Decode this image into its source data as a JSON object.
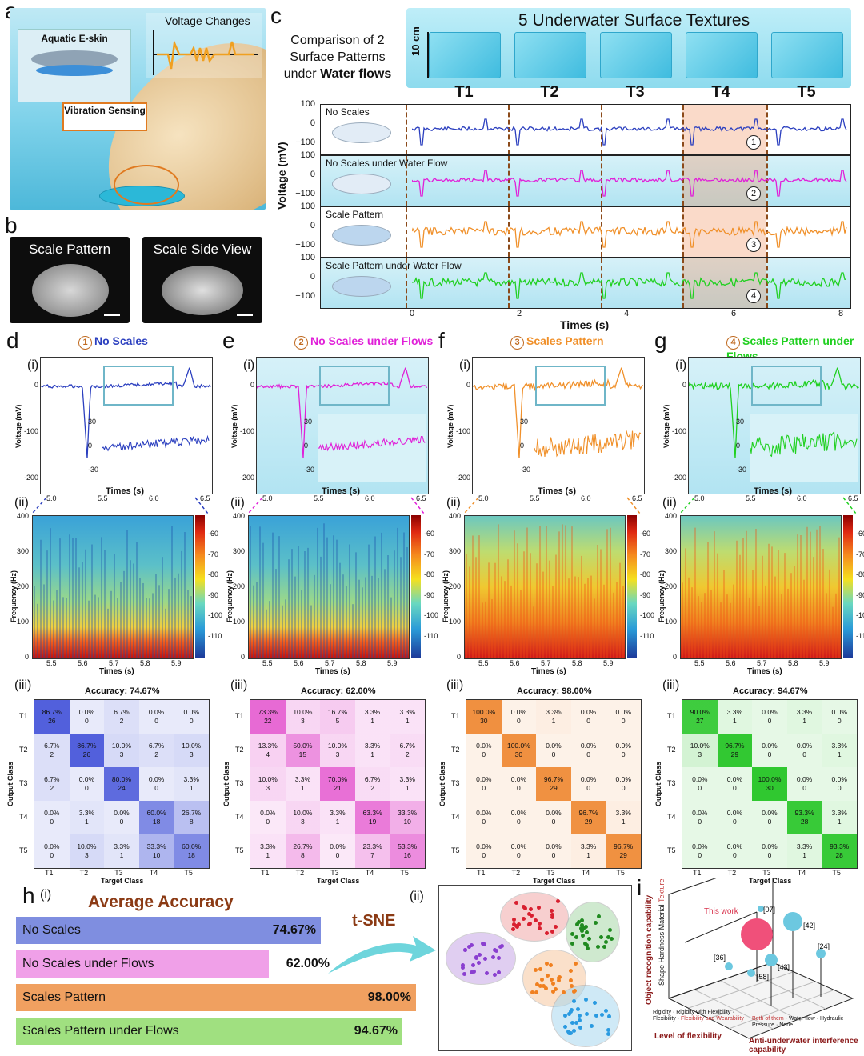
{
  "panel_letters": {
    "a": "a",
    "b": "b",
    "c": "c",
    "d": "d",
    "e": "e",
    "f": "f",
    "g": "g",
    "h": "h",
    "i": "i"
  },
  "panel_a": {
    "skin_label": "Aquatic E-skin",
    "voltage_label": "Voltage Changes",
    "sensing_label": "Vibration Sensing"
  },
  "panel_b": {
    "left_title": "Scale Pattern",
    "right_title": "Scale Side View"
  },
  "panel_c": {
    "comparison_text": "Comparison of 2 Surface Patterns under",
    "comparison_bold": "Water flows",
    "textures_title": "5  Underwater Surface Textures",
    "scale_bar": "10 cm",
    "textures": [
      "T1",
      "T2",
      "T3",
      "T4",
      "T5"
    ],
    "ylabel": "Voltage (mV)",
    "xlabel": "Times (s)",
    "xticks": [
      "0",
      "2",
      "4",
      "6",
      "8"
    ],
    "yticks": [
      "100",
      "0",
      "−100"
    ],
    "strips": [
      {
        "name": "No Scales",
        "num": "1",
        "color": "#2b3fbf"
      },
      {
        "name": "No Scales under Water Flow",
        "num": "2",
        "color": "#e020d8"
      },
      {
        "name": "Scale Pattern",
        "num": "3",
        "color": "#f0902a"
      },
      {
        "name": "Scale Pattern under Water Flow",
        "num": "4",
        "color": "#20d020"
      }
    ]
  },
  "subpanels": [
    {
      "num": "1",
      "title": "No Scales",
      "color": "#2b3fbf",
      "accuracy": "Accuracy: 74.67%",
      "matrix": [
        [
          "86.7%",
          "26"
        ],
        [
          "0.0%",
          "0"
        ],
        [
          "6.7%",
          "2"
        ],
        [
          "0.0%",
          "0"
        ],
        [
          "0.0%",
          "0"
        ],
        [
          "6.7%",
          "2"
        ],
        [
          "86.7%",
          "26"
        ],
        [
          "10.0%",
          "3"
        ],
        [
          "6.7%",
          "2"
        ],
        [
          "10.0%",
          "3"
        ],
        [
          "6.7%",
          "2"
        ],
        [
          "0.0%",
          "0"
        ],
        [
          "80.0%",
          "24"
        ],
        [
          "0.0%",
          "0"
        ],
        [
          "3.3%",
          "1"
        ],
        [
          "0.0%",
          "0"
        ],
        [
          "3.3%",
          "1"
        ],
        [
          "0.0%",
          "0"
        ],
        [
          "60.0%",
          "18"
        ],
        [
          "26.7%",
          "8"
        ],
        [
          "0.0%",
          "0"
        ],
        [
          "10.0%",
          "3"
        ],
        [
          "3.3%",
          "1"
        ],
        [
          "33.3%",
          "10"
        ],
        [
          "60.0%",
          "18"
        ]
      ]
    },
    {
      "num": "2",
      "title": "No Scales under  Flows",
      "color": "#e020d8",
      "accuracy": "Accuracy: 62.00%",
      "matrix": [
        [
          "73.3%",
          "22"
        ],
        [
          "10.0%",
          "3"
        ],
        [
          "16.7%",
          "5"
        ],
        [
          "3.3%",
          "1"
        ],
        [
          "3.3%",
          "1"
        ],
        [
          "13.3%",
          "4"
        ],
        [
          "50.0%",
          "15"
        ],
        [
          "10.0%",
          "3"
        ],
        [
          "3.3%",
          "1"
        ],
        [
          "6.7%",
          "2"
        ],
        [
          "10.0%",
          "3"
        ],
        [
          "3.3%",
          "1"
        ],
        [
          "70.0%",
          "21"
        ],
        [
          "6.7%",
          "2"
        ],
        [
          "3.3%",
          "1"
        ],
        [
          "0.0%",
          "0"
        ],
        [
          "10.0%",
          "3"
        ],
        [
          "3.3%",
          "1"
        ],
        [
          "63.3%",
          "19"
        ],
        [
          "33.3%",
          "10"
        ],
        [
          "3.3%",
          "1"
        ],
        [
          "26.7%",
          "8"
        ],
        [
          "0.0%",
          "0"
        ],
        [
          "23.3%",
          "7"
        ],
        [
          "53.3%",
          "16"
        ]
      ]
    },
    {
      "num": "3",
      "title": "Scales Pattern",
      "color": "#f0902a",
      "accuracy": "Accuracy: 98.00%",
      "matrix": [
        [
          "100.0%",
          "30"
        ],
        [
          "0.0%",
          "0"
        ],
        [
          "3.3%",
          "1"
        ],
        [
          "0.0%",
          "0"
        ],
        [
          "0.0%",
          "0"
        ],
        [
          "0.0%",
          "0"
        ],
        [
          "100.0%",
          "30"
        ],
        [
          "0.0%",
          "0"
        ],
        [
          "0.0%",
          "0"
        ],
        [
          "0.0%",
          "0"
        ],
        [
          "0.0%",
          "0"
        ],
        [
          "0.0%",
          "0"
        ],
        [
          "96.7%",
          "29"
        ],
        [
          "0.0%",
          "0"
        ],
        [
          "0.0%",
          "0"
        ],
        [
          "0.0%",
          "0"
        ],
        [
          "0.0%",
          "0"
        ],
        [
          "0.0%",
          "0"
        ],
        [
          "96.7%",
          "29"
        ],
        [
          "3.3%",
          "1"
        ],
        [
          "0.0%",
          "0"
        ],
        [
          "0.0%",
          "0"
        ],
        [
          "0.0%",
          "0"
        ],
        [
          "3.3%",
          "1"
        ],
        [
          "96.7%",
          "29"
        ]
      ]
    },
    {
      "num": "4",
      "title": "Scales Pattern under  Flows",
      "color": "#20d020",
      "accuracy": "Accuracy: 94.67%",
      "matrix": [
        [
          "90.0%",
          "27"
        ],
        [
          "3.3%",
          "1"
        ],
        [
          "0.0%",
          "0"
        ],
        [
          "3.3%",
          "1"
        ],
        [
          "0.0%",
          "0"
        ],
        [
          "10.0%",
          "3"
        ],
        [
          "96.7%",
          "29"
        ],
        [
          "0.0%",
          "0"
        ],
        [
          "0.0%",
          "0"
        ],
        [
          "3.3%",
          "1"
        ],
        [
          "0.0%",
          "0"
        ],
        [
          "0.0%",
          "0"
        ],
        [
          "100.0%",
          "30"
        ],
        [
          "0.0%",
          "0"
        ],
        [
          "0.0%",
          "0"
        ],
        [
          "0.0%",
          "0"
        ],
        [
          "0.0%",
          "0"
        ],
        [
          "0.0%",
          "0"
        ],
        [
          "93.3%",
          "28"
        ],
        [
          "3.3%",
          "1"
        ],
        [
          "0.0%",
          "0"
        ],
        [
          "0.0%",
          "0"
        ],
        [
          "0.0%",
          "0"
        ],
        [
          "3.3%",
          "1"
        ],
        [
          "93.3%",
          "28"
        ]
      ]
    }
  ],
  "common": {
    "roman_i": "(i)",
    "roman_ii": "(ii)",
    "roman_iii": "(iii)",
    "line_ylabel": "Voltage (mV)",
    "line_xlabel": "Times (s)",
    "line_xticks": [
      "5.0",
      "5.5",
      "6.0",
      "6.5"
    ],
    "line_yticks": [
      "0",
      "-100",
      "-200"
    ],
    "inset_yticks": [
      "30",
      "0",
      "-30"
    ],
    "spec_ylabel": "Frequency (Hz)",
    "spec_xlabel": "Times (s)",
    "spec_yticks": [
      "400",
      "300",
      "200",
      "100",
      "0"
    ],
    "spec_xticks": [
      "5.5",
      "5.6",
      "5.7",
      "5.8",
      "5.9"
    ],
    "cbar_ticks": [
      "-60",
      "-70",
      "-80",
      "-90",
      "-100",
      "-110"
    ],
    "cm_xlabel": "Target Class",
    "cm_ylabel": "Output Class",
    "classes": [
      "T1",
      "T2",
      "T3",
      "T4",
      "T5"
    ]
  },
  "panel_h": {
    "title": "Average Accuracy",
    "tsne_label": "t-SNE",
    "chart_data": {
      "type": "bar",
      "title": "Average Accuracy",
      "categories": [
        "No Scales",
        "No Scales under  Flows",
        "Scales Pattern",
        "Scales Pattern under  Flows"
      ],
      "values": [
        74.67,
        62.0,
        98.0,
        94.67
      ],
      "labels": [
        "74.67%",
        "62.00%",
        "98.00%",
        "94.67%"
      ],
      "colors": [
        "#7f8ee0",
        "#f0a0e8",
        "#f0a060",
        "#a0e080"
      ]
    }
  },
  "panel_i": {
    "zlabel": "Object recognition capability",
    "z_ticks": [
      "Shape",
      "Hardness",
      "Material",
      "Texture"
    ],
    "xlabel": "Level of flexibility",
    "x_ticks": [
      "Rigidity",
      "Rigidity with Flexibility",
      "Flexibility",
      "Flexibility and Wearability"
    ],
    "ylabel": "Anti-underwater interference capability",
    "y_ticks": [
      "Both of them",
      "Water flow",
      "Hydraulic Pressure",
      "None"
    ],
    "this_work": "This work",
    "refs": [
      "[07]",
      "[42]",
      "[24]",
      "[36]",
      "[58]",
      "[43]"
    ]
  }
}
